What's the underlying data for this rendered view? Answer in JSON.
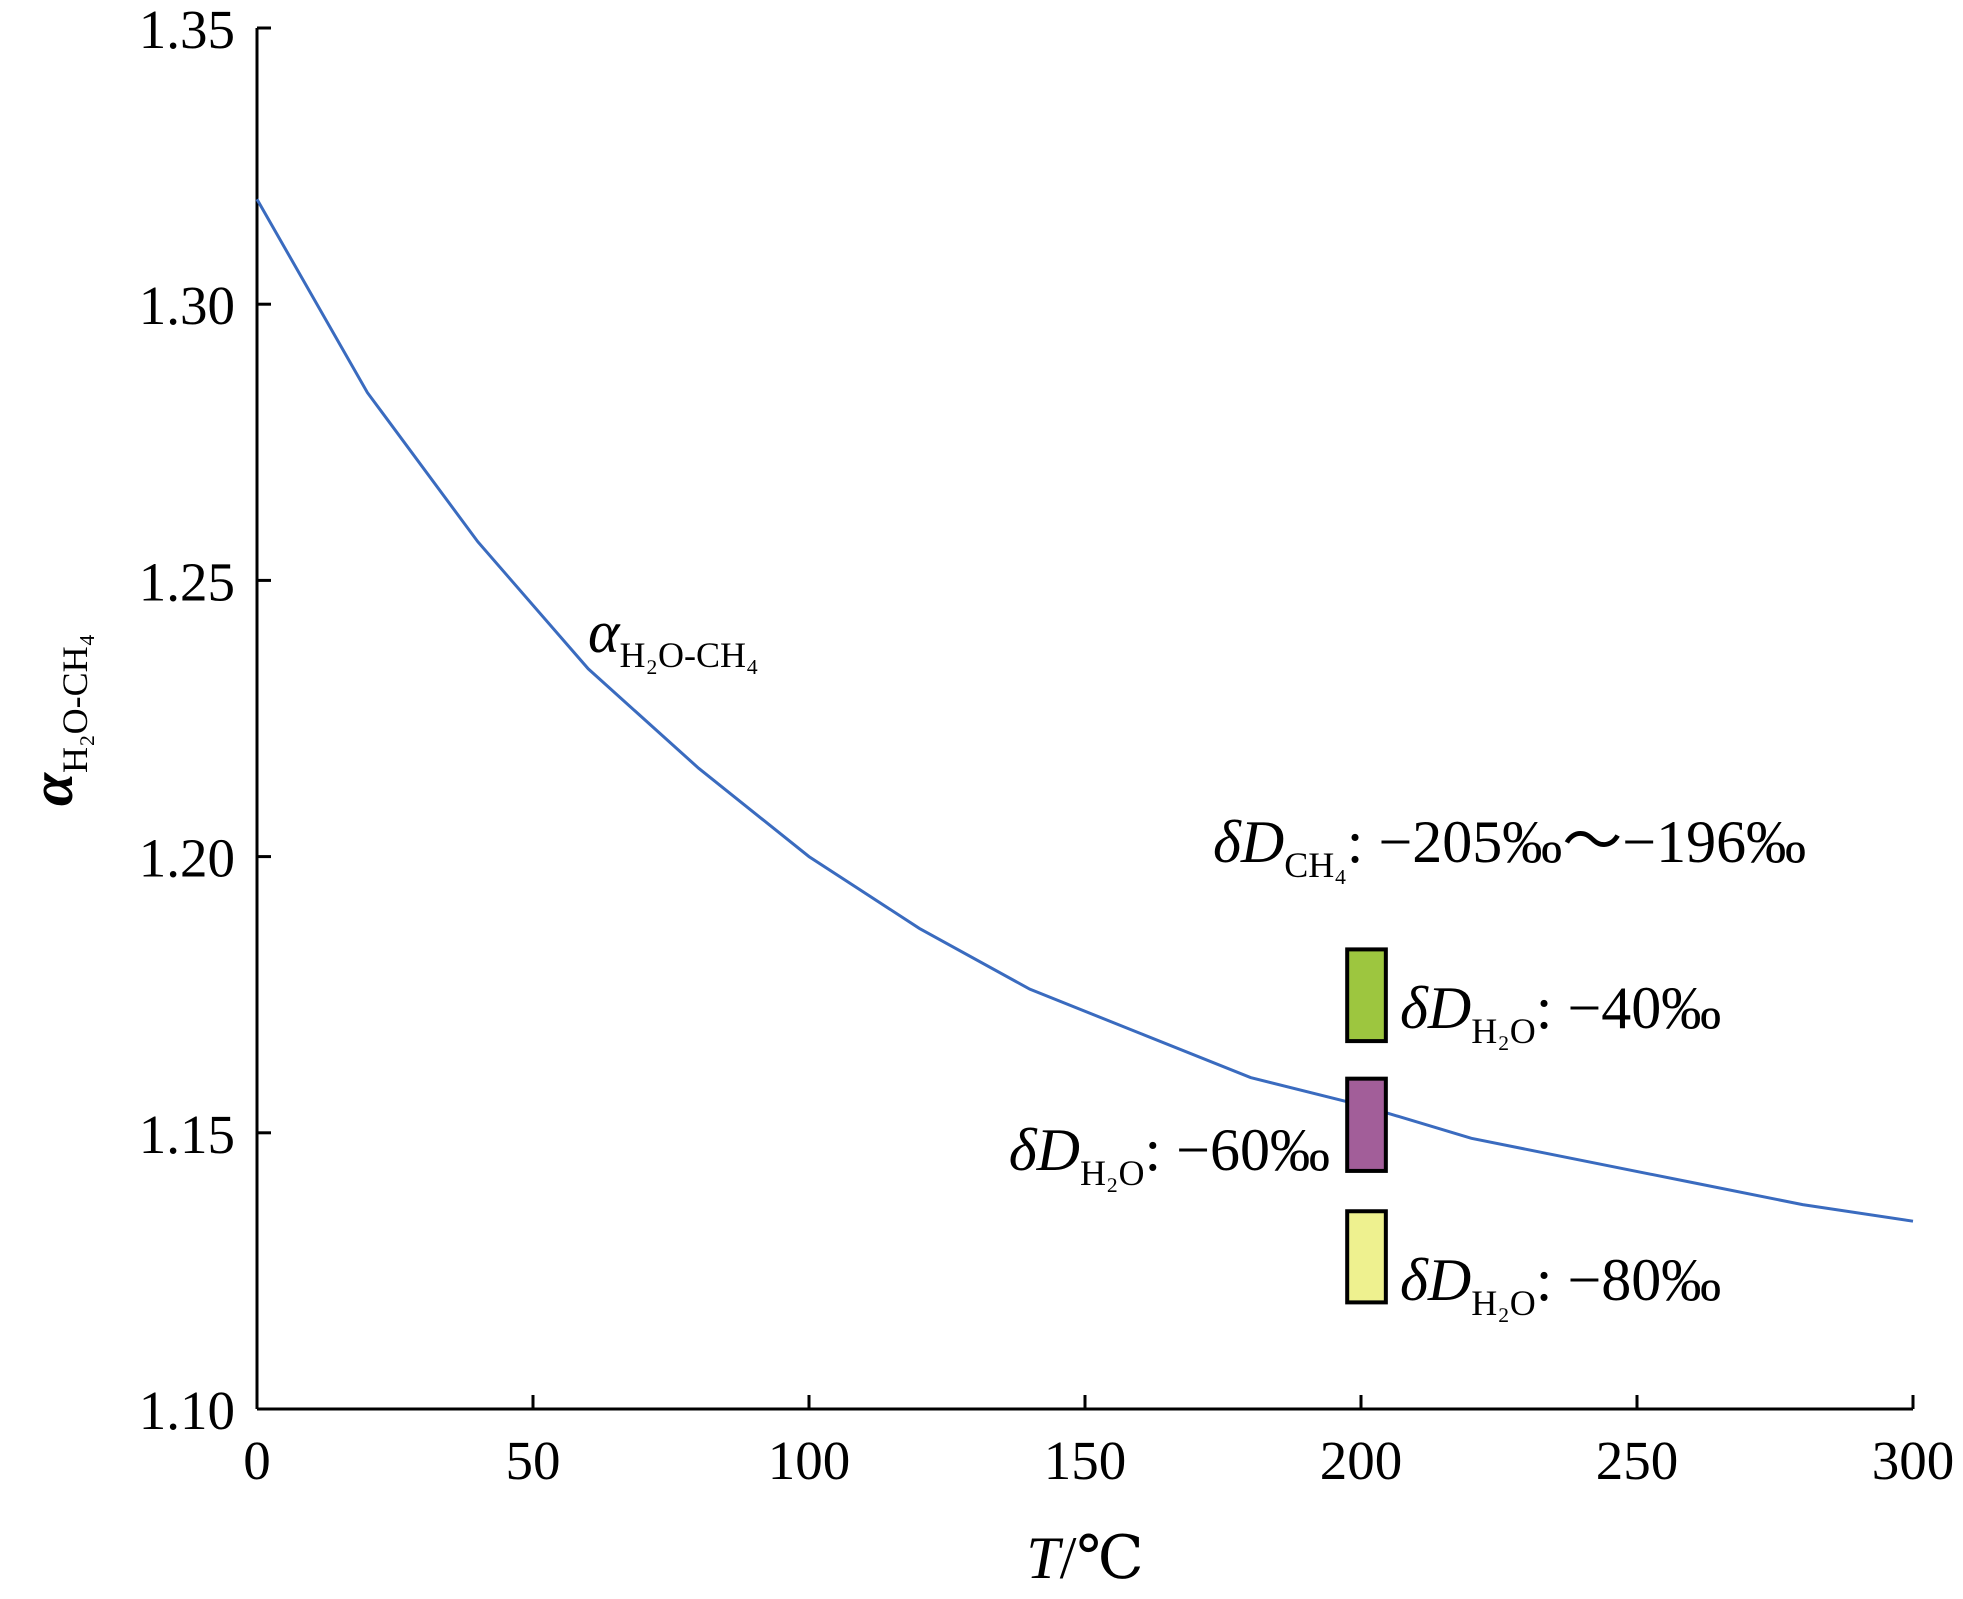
{
  "chart_data": {
    "type": "line",
    "title": "",
    "xlabel": {
      "italic": "T",
      "rest": "/℃"
    },
    "ylabel": {
      "main": "α",
      "sub": "H₂O-CH₄"
    },
    "xlim": [
      0,
      300
    ],
    "ylim": [
      1.1,
      1.35
    ],
    "xticks": [
      "0",
      "50",
      "100",
      "150",
      "200",
      "250",
      "300"
    ],
    "yticks": [
      "1.10",
      "1.15",
      "1.20",
      "1.25",
      "1.30",
      "1.35"
    ],
    "grid": false,
    "series": [
      {
        "name": "α H2O-CH4",
        "color": "#3a6bbf",
        "x": [
          0,
          20,
          40,
          60,
          80,
          100,
          120,
          140,
          160,
          180,
          200,
          220,
          240,
          260,
          280,
          300
        ],
        "y": [
          1.319,
          1.284,
          1.257,
          1.234,
          1.216,
          1.2,
          1.187,
          1.176,
          1.168,
          1.16,
          1.155,
          1.149,
          1.145,
          1.141,
          1.137,
          1.134
        ]
      }
    ],
    "curve_label": {
      "main": "α",
      "sub": "H₂O-CH₄"
    },
    "ranges": [
      {
        "x": [
          197.5,
          204.5
        ],
        "y": [
          1.1666,
          1.1832
        ],
        "color": "#9dc63f",
        "label": {
          "pre": "δD",
          "sub": "H₂O",
          "value": ": −40‰"
        }
      },
      {
        "x": [
          197.5,
          204.5
        ],
        "y": [
          1.1431,
          1.1598
        ],
        "color": "#a25e99",
        "label": {
          "pre": "δD",
          "sub": "H₂O",
          "value": ": −60‰"
        }
      },
      {
        "x": [
          197.5,
          204.5
        ],
        "y": [
          1.1193,
          1.1358
        ],
        "color": "#eef18f",
        "label": {
          "pre": "δD",
          "sub": "H₂O",
          "value": ": −80‰"
        }
      }
    ],
    "annotation": {
      "pre": "δD",
      "sub": "CH₄",
      "value": ": −205‰～−196‰"
    }
  }
}
